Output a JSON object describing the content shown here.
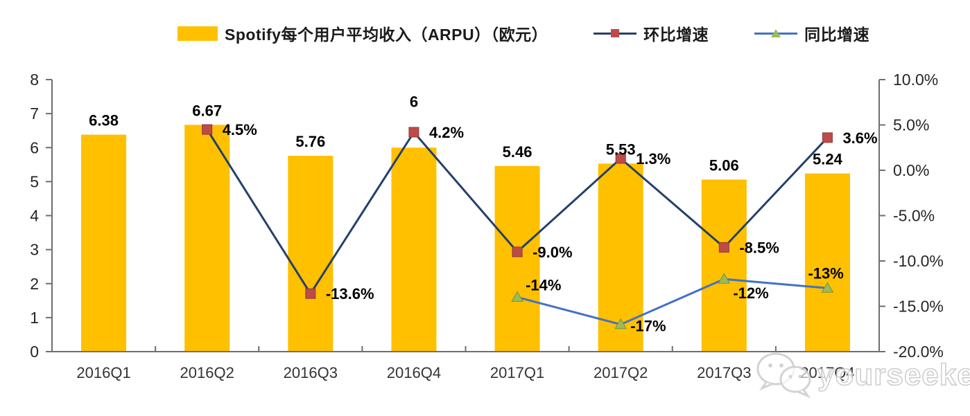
{
  "chart_data": {
    "type": "bar",
    "categories": [
      "2016Q1",
      "2016Q2",
      "2016Q3",
      "2016Q4",
      "2017Q1",
      "2017Q2",
      "2017Q3",
      "2017Q4"
    ],
    "series": [
      {
        "name": "Spotify每个用户平均收入（ARPU）（欧元）",
        "type": "bar",
        "axis": "left",
        "color": "#FFC000",
        "values": [
          6.38,
          6.67,
          5.76,
          6,
          5.46,
          5.53,
          5.06,
          5.24
        ],
        "labels": [
          "6.38",
          "6.67",
          "5.76",
          "6",
          "5.46",
          "5.53",
          "5.06",
          "5.24"
        ]
      },
      {
        "name": "环比增速",
        "type": "line",
        "axis": "right",
        "color": "#24406B",
        "marker": "square",
        "marker_color": "#BE4B48",
        "marker_border": "#8C3836",
        "values": [
          null,
          4.5,
          -13.6,
          4.2,
          -9.0,
          1.3,
          -8.5,
          3.6
        ],
        "labels": [
          null,
          "4.5%",
          "-13.6%",
          "4.2%",
          "-9.0%",
          "1.3%",
          "-8.5%",
          "3.6%"
        ]
      },
      {
        "name": "同比增速",
        "type": "line",
        "axis": "right",
        "color": "#4472C4",
        "marker": "triangle",
        "marker_color": "#9BBB59",
        "marker_border": "#77933C",
        "values": [
          null,
          null,
          null,
          null,
          -14,
          -17,
          -12,
          -13
        ],
        "labels": [
          null,
          null,
          null,
          null,
          "-14%",
          "-17%",
          "-12%",
          "-13%"
        ]
      }
    ],
    "left_axis": {
      "min": 0,
      "max": 8,
      "step": 1,
      "ticks": [
        "0",
        "1",
        "2",
        "3",
        "4",
        "5",
        "6",
        "7",
        "8"
      ]
    },
    "right_axis": {
      "min": -20,
      "max": 10,
      "step": 5,
      "ticks": [
        "10.0%",
        "5.0%",
        "0.0%",
        "-5.0%",
        "-10.0%",
        "-15.0%",
        "-20.0%"
      ]
    },
    "grid": false,
    "legend_position": "top",
    "axis_color": "#6e6e6e",
    "tick_label_color": "#262626",
    "data_label_color": "#000000"
  },
  "legend": {
    "arpu_label": "Spotify每个用户平均收入（ARPU）（欧元）",
    "qoq_label": "环比增速",
    "yoy_label": "同比增速"
  },
  "watermark": {
    "text": "yourseeker",
    "icon": "wechat-icon"
  }
}
